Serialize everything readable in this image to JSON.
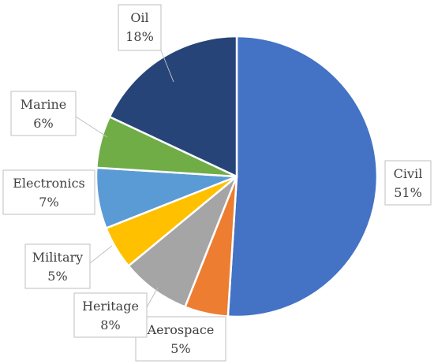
{
  "chart_data": {
    "type": "pie",
    "title": "",
    "slices": [
      {
        "label": "Civil",
        "value": 51,
        "value_label": "51%",
        "color": "#4472c4"
      },
      {
        "label": "Aerospace",
        "value": 5,
        "value_label": "5%",
        "color": "#ed7d31"
      },
      {
        "label": "Heritage",
        "value": 8,
        "value_label": "8%",
        "color": "#a5a5a5"
      },
      {
        "label": "Military",
        "value": 5,
        "value_label": "5%",
        "color": "#ffc000"
      },
      {
        "label": "Electronics",
        "value": 7,
        "value_label": "7%",
        "color": "#5b9bd5"
      },
      {
        "label": "Marine",
        "value": 6,
        "value_label": "6%",
        "color": "#70ad47"
      },
      {
        "label": "Oil",
        "value": 18,
        "value_label": "18%",
        "color": "#264478"
      }
    ],
    "start_angle": "12 o'clock",
    "direction": "clockwise",
    "legend": "none",
    "data_labels": "callout boxes with leader lines"
  }
}
